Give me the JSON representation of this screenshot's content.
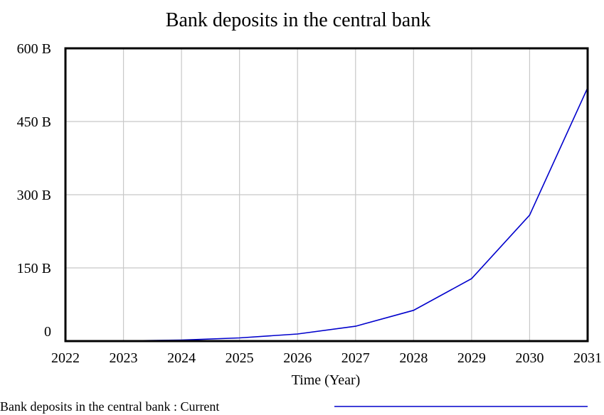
{
  "chart_data": {
    "type": "line",
    "title": "Bank deposits in the central bank",
    "xlabel": "Time (Year)",
    "ylabel": "",
    "x": [
      2022,
      2023,
      2024,
      2025,
      2026,
      2027,
      2028,
      2029,
      2030,
      2031
    ],
    "xlim": [
      2022,
      2031
    ],
    "ylim": [
      0,
      600
    ],
    "y_unit": "B",
    "x_ticks": [
      "2022",
      "2023",
      "2024",
      "2025",
      "2026",
      "2027",
      "2028",
      "2029",
      "2030",
      "2031"
    ],
    "y_ticks": [
      {
        "value": 0,
        "label": "0"
      },
      {
        "value": 150,
        "label": "150 B"
      },
      {
        "value": 300,
        "label": "300 B"
      },
      {
        "value": 450,
        "label": "450 B"
      },
      {
        "value": 600,
        "label": "600 B"
      }
    ],
    "grid": true,
    "legend_position": "bottom",
    "series": [
      {
        "name": "Bank deposits in the central bank : Current",
        "color": "#0000cc",
        "values": [
          0,
          0.5,
          2,
          6.5,
          14.5,
          30.5,
          63,
          128,
          258,
          519
        ]
      }
    ]
  }
}
